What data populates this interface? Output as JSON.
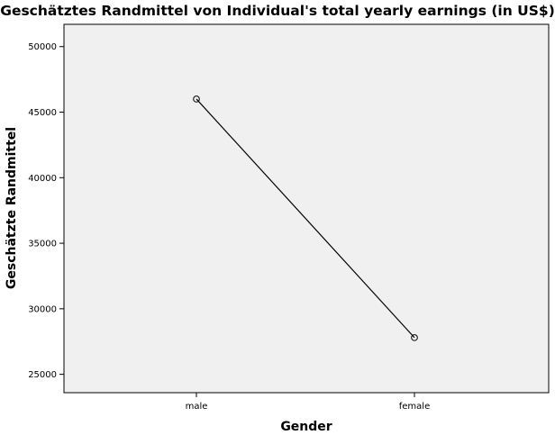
{
  "chart_data": {
    "type": "line",
    "title": "Geschätztes Randmittel von Individual's total yearly earnings (in US$)",
    "xlabel": "Gender",
    "ylabel": "Geschätzte Randmittel",
    "categories": [
      "male",
      "female"
    ],
    "series": [
      {
        "values": [
          46000,
          27800
        ],
        "marker": "open-circle",
        "color": "#000000"
      }
    ],
    "ylim": [
      23600,
      51700
    ],
    "yticks": [
      25000,
      30000,
      35000,
      40000,
      45000,
      50000
    ],
    "grid": false,
    "plot_background": "#f0f0f0"
  }
}
